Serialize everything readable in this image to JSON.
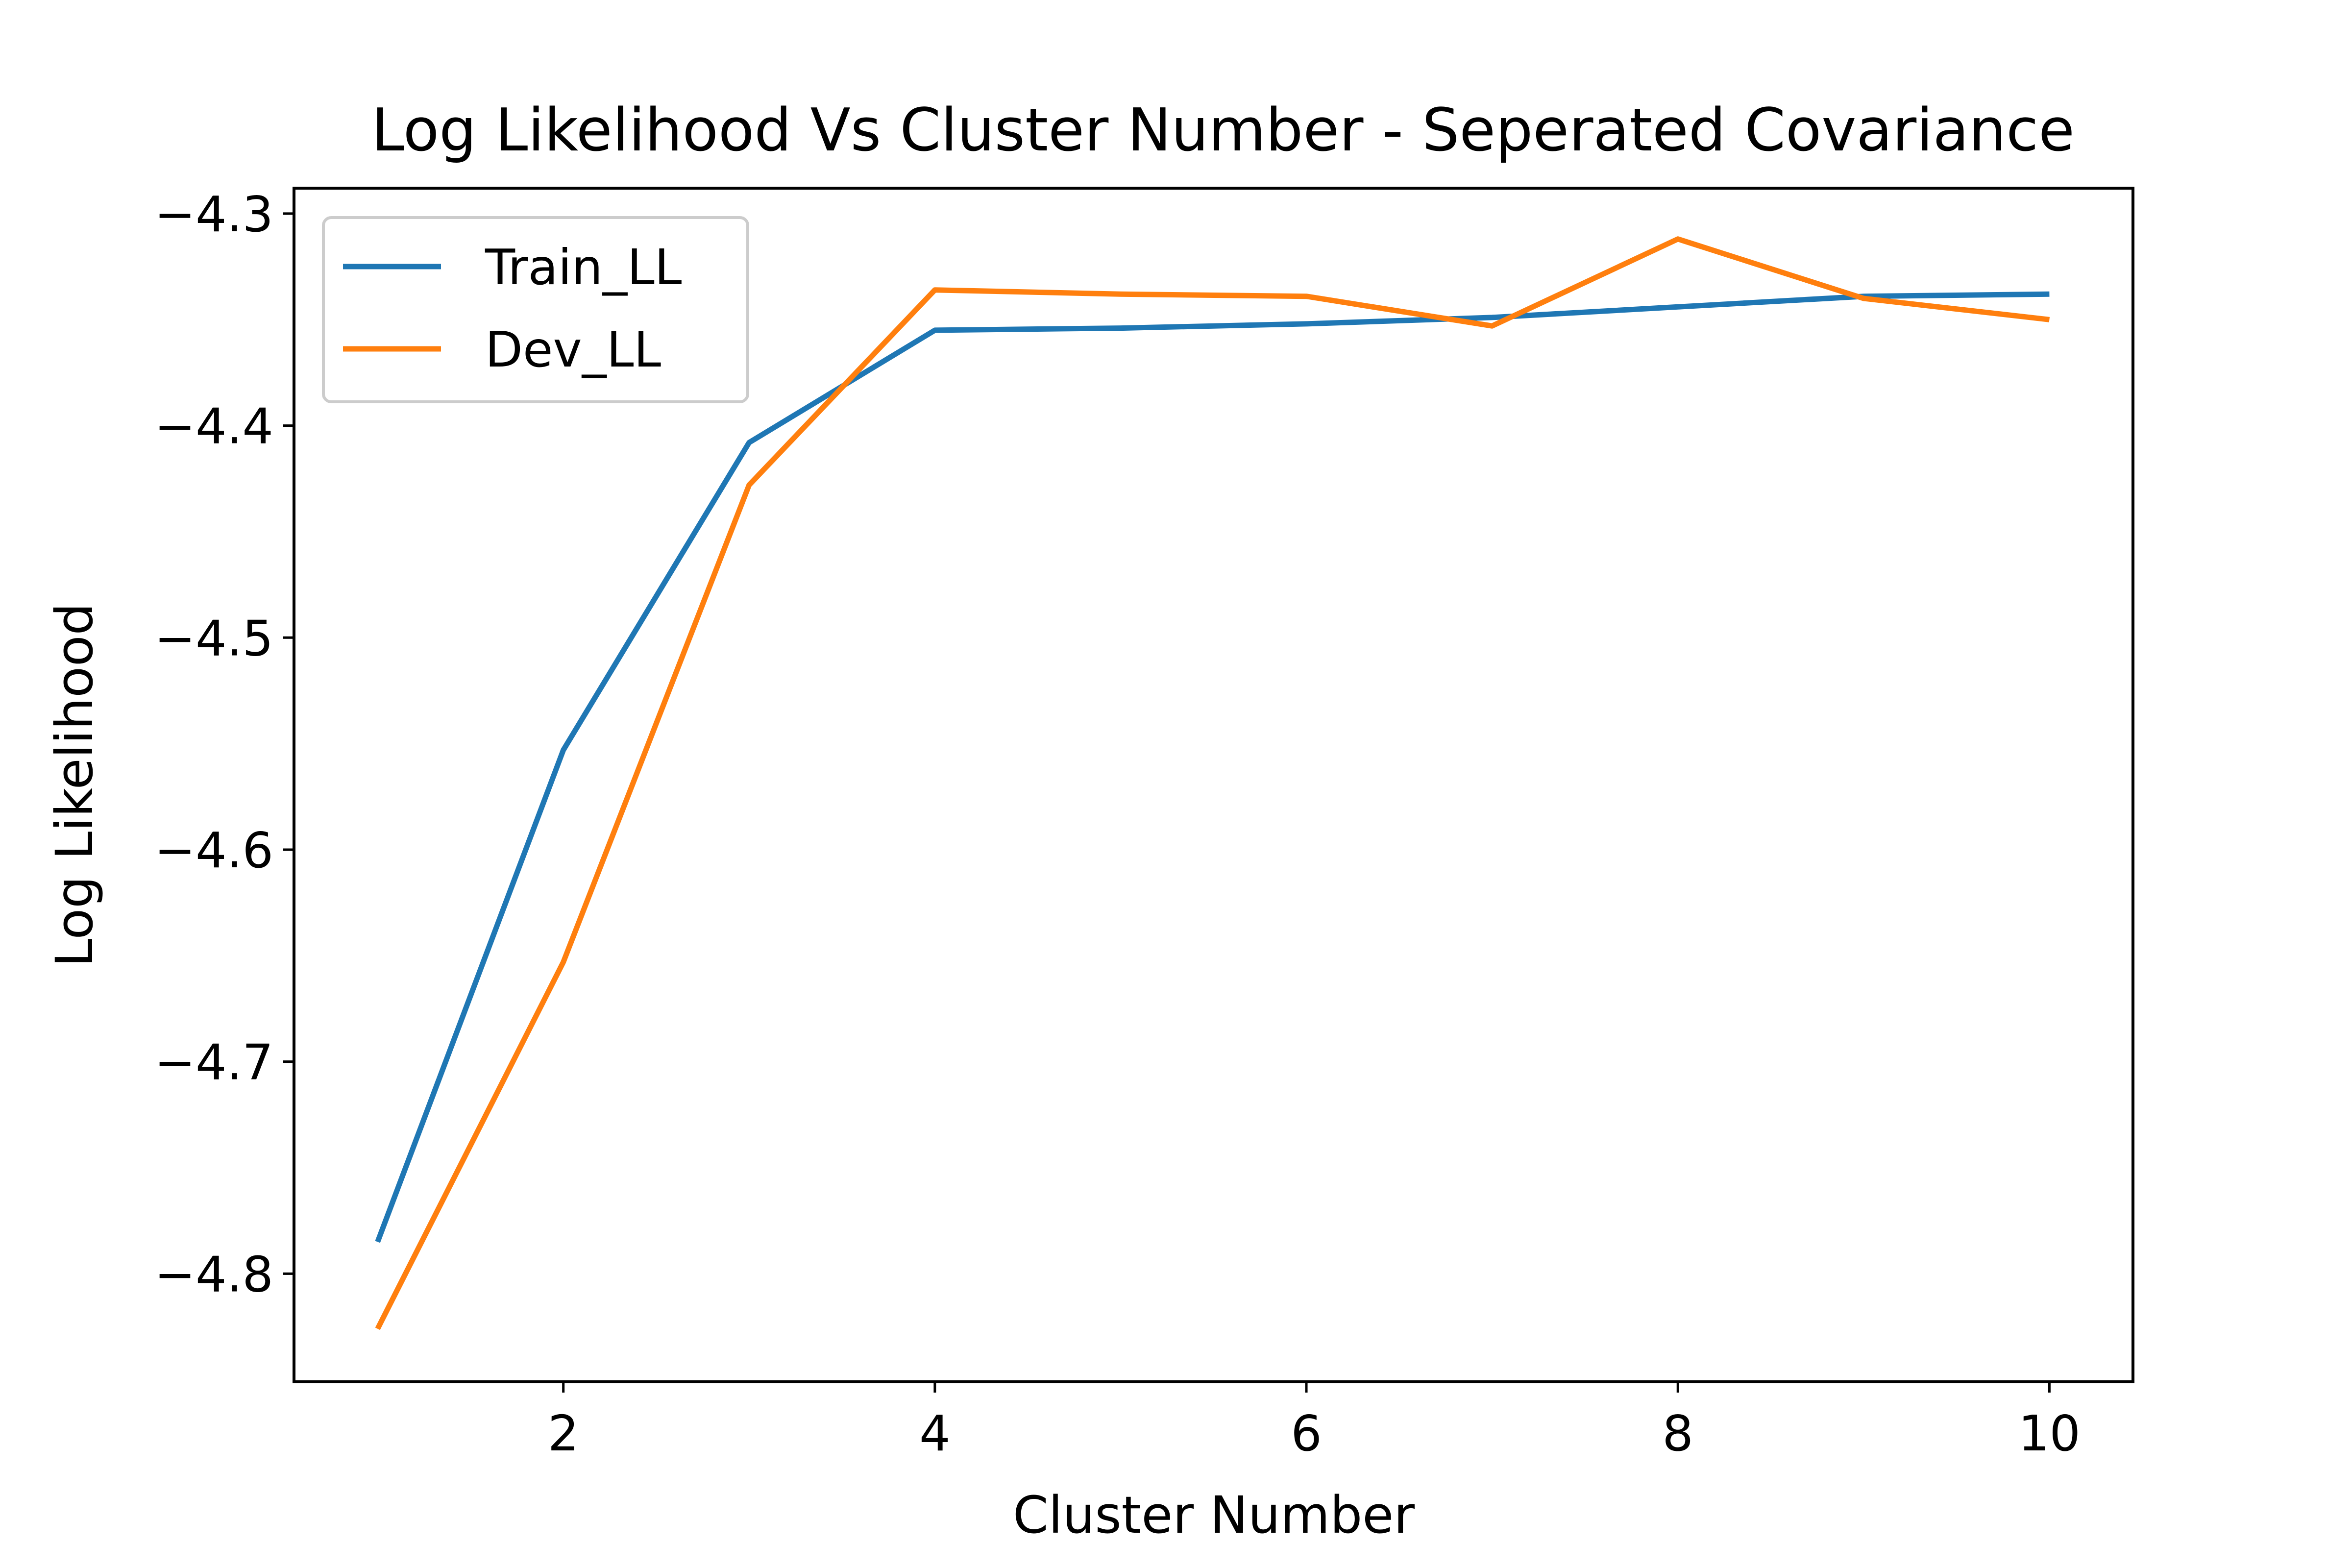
{
  "chart_data": {
    "type": "line",
    "title": "Log Likelihood Vs Cluster Number - Seperated Covariance",
    "xlabel": "Cluster Number",
    "ylabel": "Log Likelihood",
    "xlim": [
      0.55,
      10.45
    ],
    "ylim": [
      -4.851,
      -4.288
    ],
    "xticks": [
      2,
      4,
      6,
      8,
      10
    ],
    "yticks": [
      -4.8,
      -4.7,
      -4.6,
      -4.5,
      -4.4,
      -4.3
    ],
    "xtick_labels": [
      "2",
      "4",
      "6",
      "8",
      "10"
    ],
    "ytick_labels": [
      "−4.8",
      "−4.7",
      "−4.6",
      "−4.5",
      "−4.4",
      "−4.3"
    ],
    "grid": false,
    "legend_position": "top-left",
    "x": [
      1,
      2,
      3,
      4,
      5,
      6,
      7,
      8,
      9,
      10
    ],
    "series": [
      {
        "name": "Train_LL",
        "color": "#1f77b4",
        "values": [
          -4.785,
          -4.553,
          -4.408,
          -4.355,
          -4.354,
          -4.352,
          -4.349,
          -4.344,
          -4.339,
          -4.338
        ]
      },
      {
        "name": "Dev_LL",
        "color": "#ff7f0e",
        "values": [
          -4.826,
          -4.653,
          -4.428,
          -4.336,
          -4.338,
          -4.339,
          -4.353,
          -4.312,
          -4.34,
          -4.35
        ]
      }
    ]
  }
}
